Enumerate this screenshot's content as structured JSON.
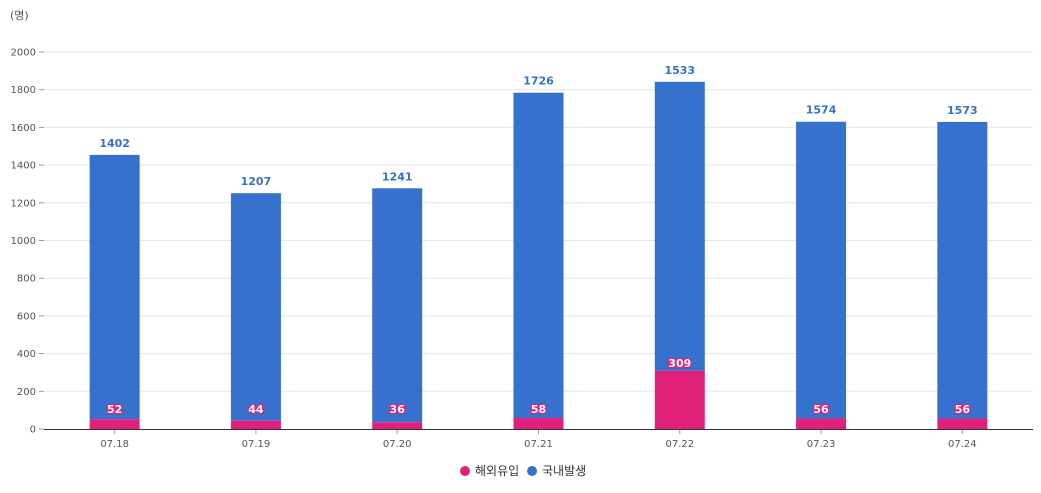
{
  "chart_data": {
    "type": "bar",
    "stacked": true,
    "unit_label": "(명)",
    "categories": [
      "07.18",
      "07.19",
      "07.20",
      "07.21",
      "07.22",
      "07.23",
      "07.24"
    ],
    "series": [
      {
        "name": "해외유입",
        "color": "#e0207a",
        "values": [
          52,
          44,
          36,
          58,
          309,
          56,
          56
        ]
      },
      {
        "name": "국내발생",
        "color": "#3571cd",
        "values": [
          1402,
          1207,
          1241,
          1726,
          1533,
          1574,
          1573
        ]
      }
    ],
    "ylim": [
      0,
      2000
    ],
    "yticks": [
      0,
      200,
      400,
      600,
      800,
      1000,
      1200,
      1400,
      1600,
      1800,
      2000
    ],
    "grid": true,
    "legend_position": "bottom-center"
  }
}
